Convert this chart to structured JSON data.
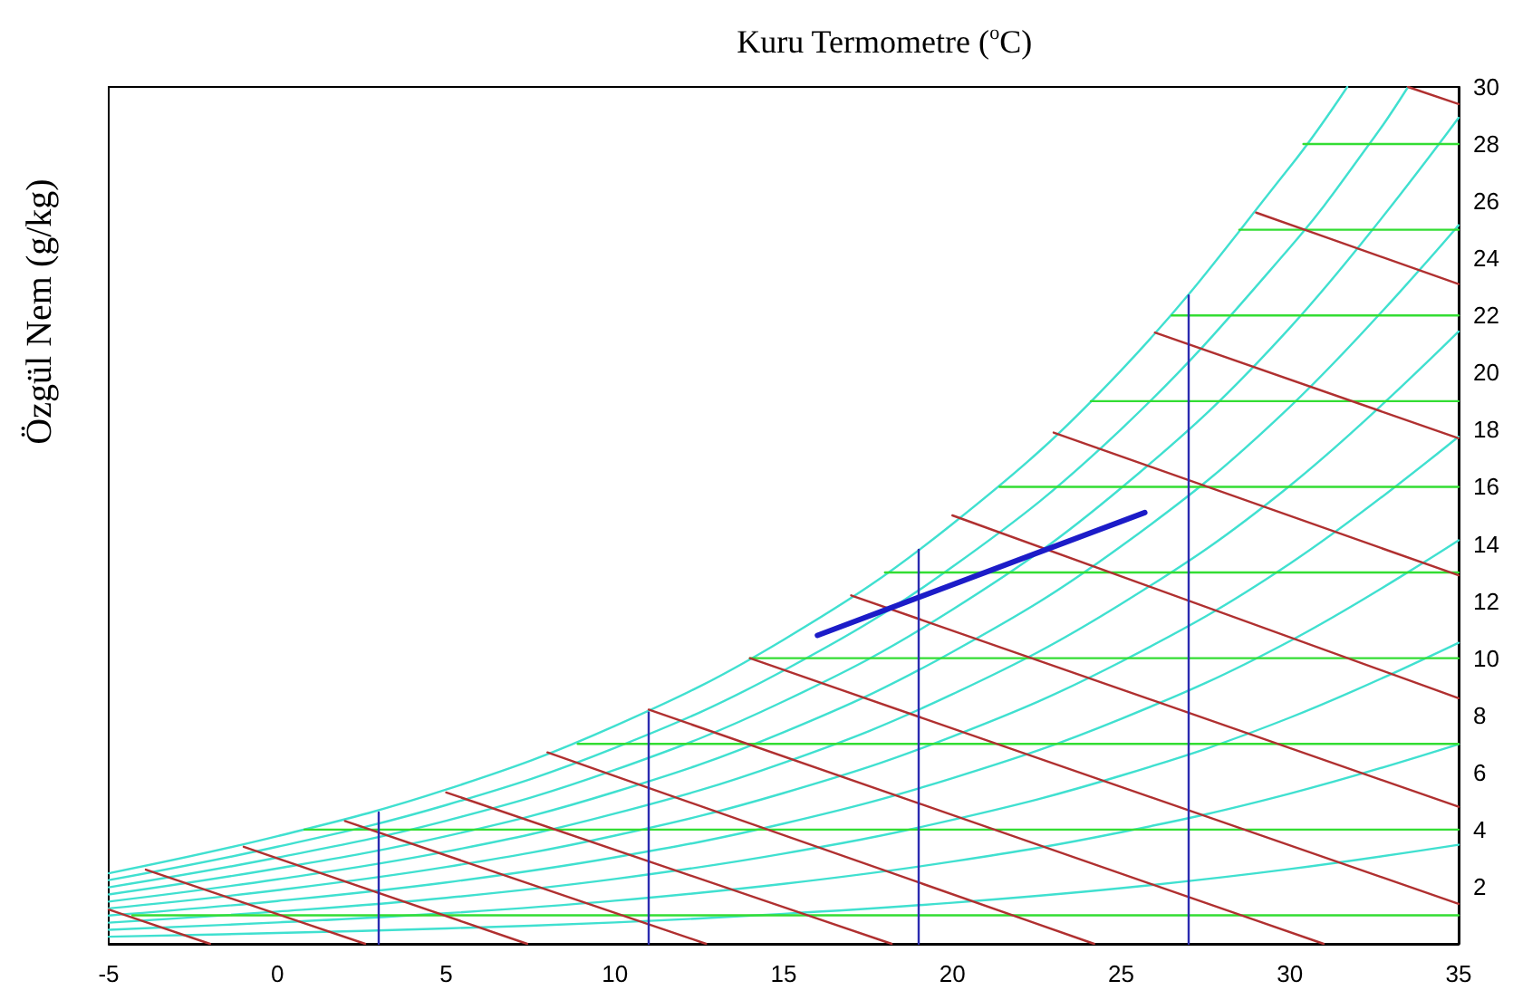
{
  "chart_data": {
    "type": "line",
    "title": "Kuru Termometre ($^{o}$C)",
    "ylabel": "Özgül Nem (g/kg)",
    "xlim": [
      -5,
      35
    ],
    "xticks": [
      -5,
      0,
      5,
      10,
      15,
      20,
      25,
      30,
      35
    ],
    "ylim": [
      0,
      30
    ],
    "yticks": [
      2,
      4,
      6,
      8,
      10,
      12,
      14,
      16,
      18,
      20,
      22,
      24,
      26,
      28,
      30
    ],
    "grid": false,
    "marker": "none",
    "line_style": "solid",
    "series": [
      {
        "color": "#40e0d0",
        "x": [
          -5,
          0,
          5,
          10,
          15,
          20,
          25,
          30,
          35
        ],
        "values": [
          0.25,
          0.38,
          0.54,
          0.75,
          1.05,
          1.44,
          1.95,
          2.62,
          3.47
        ]
      },
      {
        "color": "#40e0d0",
        "x": [
          -5,
          0,
          5,
          10,
          15,
          20,
          25,
          30,
          35
        ],
        "values": [
          0.49,
          0.75,
          1.07,
          1.51,
          2.1,
          2.88,
          3.91,
          5.26,
          6.99
        ]
      },
      {
        "color": "#40e0d0",
        "x": [
          -5,
          0,
          5,
          10,
          15,
          20,
          25,
          30,
          35
        ],
        "values": [
          0.74,
          1.13,
          1.61,
          2.27,
          3.16,
          4.34,
          5.89,
          7.92,
          10.54
        ]
      },
      {
        "color": "#40e0d0",
        "x": [
          -5,
          0,
          5,
          10,
          15,
          20,
          25,
          30,
          35
        ],
        "values": [
          0.99,
          1.5,
          2.15,
          3.03,
          4.21,
          5.8,
          7.88,
          10.6,
          14.13
        ]
      },
      {
        "color": "#40e0d0",
        "x": [
          -5,
          0,
          5,
          10,
          15,
          20,
          25,
          30,
          35
        ],
        "values": [
          1.24,
          1.88,
          2.69,
          3.79,
          5.28,
          7.26,
          9.88,
          13.31,
          17.76
        ]
      },
      {
        "color": "#40e0d0",
        "x": [
          -5,
          0,
          5,
          10,
          15,
          20,
          25,
          30,
          35
        ],
        "values": [
          1.48,
          2.26,
          3.23,
          4.56,
          6.34,
          8.74,
          11.9,
          16.04,
          21.44
        ]
      },
      {
        "color": "#40e0d0",
        "x": [
          -5,
          0,
          5,
          10,
          15,
          20,
          25,
          30,
          35
        ],
        "values": [
          1.73,
          2.64,
          3.77,
          5.32,
          7.41,
          10.22,
          13.92,
          18.8,
          25.16
        ]
      },
      {
        "color": "#40e0d0",
        "x": [
          -5,
          0,
          5,
          10,
          15,
          20,
          25,
          30,
          35
        ],
        "values": [
          1.98,
          3.02,
          4.31,
          6.09,
          8.49,
          11.7,
          15.96,
          21.57,
          28.92
        ]
      },
      {
        "color": "#40e0d0",
        "x": [
          -5,
          0,
          5,
          10,
          15,
          20,
          25,
          30,
          32.5,
          33.5
        ],
        "values": [
          2.23,
          3.4,
          4.86,
          6.86,
          9.57,
          13.2,
          18.02,
          24.38,
          28.24,
          30
        ]
      },
      {
        "color": "#40e0d0",
        "x": [
          -5,
          0,
          5,
          10,
          15,
          20,
          25,
          30,
          31.7
        ],
        "values": [
          2.47,
          3.77,
          5.4,
          7.63,
          10.65,
          14.7,
          20.08,
          27.2,
          30
        ]
      },
      {
        "color": "#33dd33",
        "x": [
          -4.3,
          35
        ],
        "values": [
          1,
          1
        ]
      },
      {
        "color": "#33dd33",
        "x": [
          0.8,
          35
        ],
        "values": [
          4,
          4
        ]
      },
      {
        "color": "#33dd33",
        "x": [
          8.9,
          35
        ],
        "values": [
          7,
          7
        ]
      },
      {
        "color": "#33dd33",
        "x": [
          14,
          35
        ],
        "values": [
          10,
          10
        ]
      },
      {
        "color": "#33dd33",
        "x": [
          18,
          35
        ],
        "values": [
          13,
          13
        ]
      },
      {
        "color": "#33dd33",
        "x": [
          21.4,
          35
        ],
        "values": [
          16,
          16
        ]
      },
      {
        "color": "#33dd33",
        "x": [
          24.1,
          35
        ],
        "values": [
          19,
          19
        ]
      },
      {
        "color": "#33dd33",
        "x": [
          26.5,
          35
        ],
        "values": [
          22,
          22
        ]
      },
      {
        "color": "#33dd33",
        "x": [
          28.5,
          35
        ],
        "values": [
          25,
          25
        ]
      },
      {
        "color": "#33dd33",
        "x": [
          30.4,
          35
        ],
        "values": [
          28,
          28
        ]
      },
      {
        "color": "#b03030",
        "x": [
          -5,
          -2
        ],
        "values": [
          1.2,
          0
        ]
      },
      {
        "color": "#b03030",
        "x": [
          -3.9,
          2.6
        ],
        "values": [
          2.6,
          0
        ]
      },
      {
        "color": "#b03030",
        "x": [
          -1,
          7.4
        ],
        "values": [
          3.4,
          0
        ]
      },
      {
        "color": "#b03030",
        "x": [
          2,
          12.7
        ],
        "values": [
          4.3,
          0
        ]
      },
      {
        "color": "#b03030",
        "x": [
          5,
          18.2
        ],
        "values": [
          5.3,
          0
        ]
      },
      {
        "color": "#b03030",
        "x": [
          8,
          24.2
        ],
        "values": [
          6.7,
          0
        ]
      },
      {
        "color": "#b03030",
        "x": [
          11,
          31
        ],
        "values": [
          8.2,
          0
        ]
      },
      {
        "color": "#b03030",
        "x": [
          14,
          35
        ],
        "values": [
          10,
          1.4
        ]
      },
      {
        "color": "#b03030",
        "x": [
          17,
          35
        ],
        "values": [
          12.2,
          4.8
        ]
      },
      {
        "color": "#b03030",
        "x": [
          20,
          35
        ],
        "values": [
          15,
          8.6
        ]
      },
      {
        "color": "#b03030",
        "x": [
          23,
          35
        ],
        "values": [
          17.9,
          12.9
        ]
      },
      {
        "color": "#b03030",
        "x": [
          26,
          35
        ],
        "values": [
          21.4,
          17.7
        ]
      },
      {
        "color": "#b03030",
        "x": [
          29,
          35
        ],
        "values": [
          25.6,
          23.1
        ]
      },
      {
        "color": "#b03030",
        "x": [
          33.5,
          35
        ],
        "values": [
          30,
          29.4
        ]
      },
      {
        "color": "#2b2bb0",
        "x": [
          3,
          3
        ],
        "values": [
          0,
          4.6
        ]
      },
      {
        "color": "#2b2bb0",
        "x": [
          11,
          11
        ],
        "values": [
          0,
          8.1
        ]
      },
      {
        "color": "#2b2bb0",
        "x": [
          19,
          19
        ],
        "values": [
          0,
          13.8
        ]
      },
      {
        "color": "#2b2bb0",
        "x": [
          27,
          27
        ],
        "values": [
          0,
          22.7
        ]
      },
      {
        "color": "#1c1cc8",
        "x": [
          16,
          25.7
        ],
        "values": [
          10.8,
          15.1
        ]
      }
    ]
  }
}
